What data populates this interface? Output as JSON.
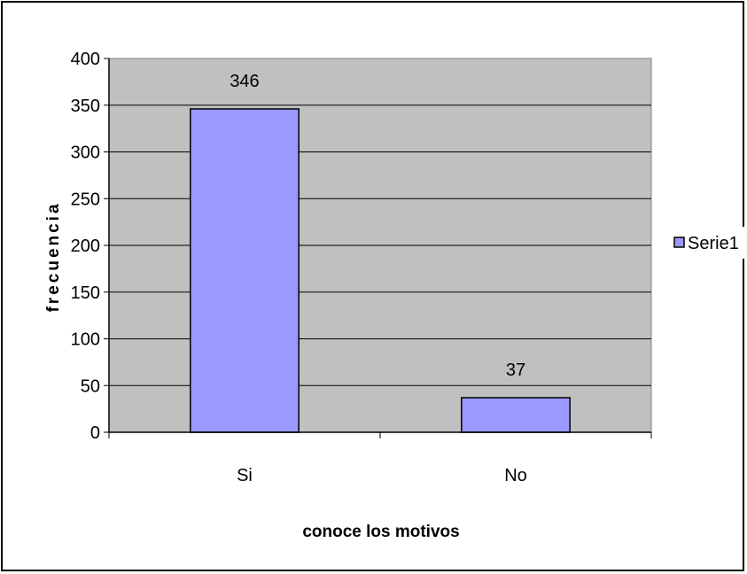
{
  "chart_data": {
    "type": "bar",
    "categories": [
      "Si",
      "No"
    ],
    "series": [
      {
        "name": "Serie1",
        "values": [
          346,
          37
        ],
        "color": "#9999ff"
      }
    ],
    "data_labels": [
      "346",
      "37"
    ],
    "title": "",
    "xlabel": "conoce los motivos",
    "ylabel": "frecuencia",
    "ylim": [
      0,
      400
    ],
    "yticks": [
      0,
      50,
      100,
      150,
      200,
      250,
      300,
      350,
      400
    ],
    "grid": true,
    "plot_background": "#c0c0c0",
    "legend_position": "right"
  }
}
